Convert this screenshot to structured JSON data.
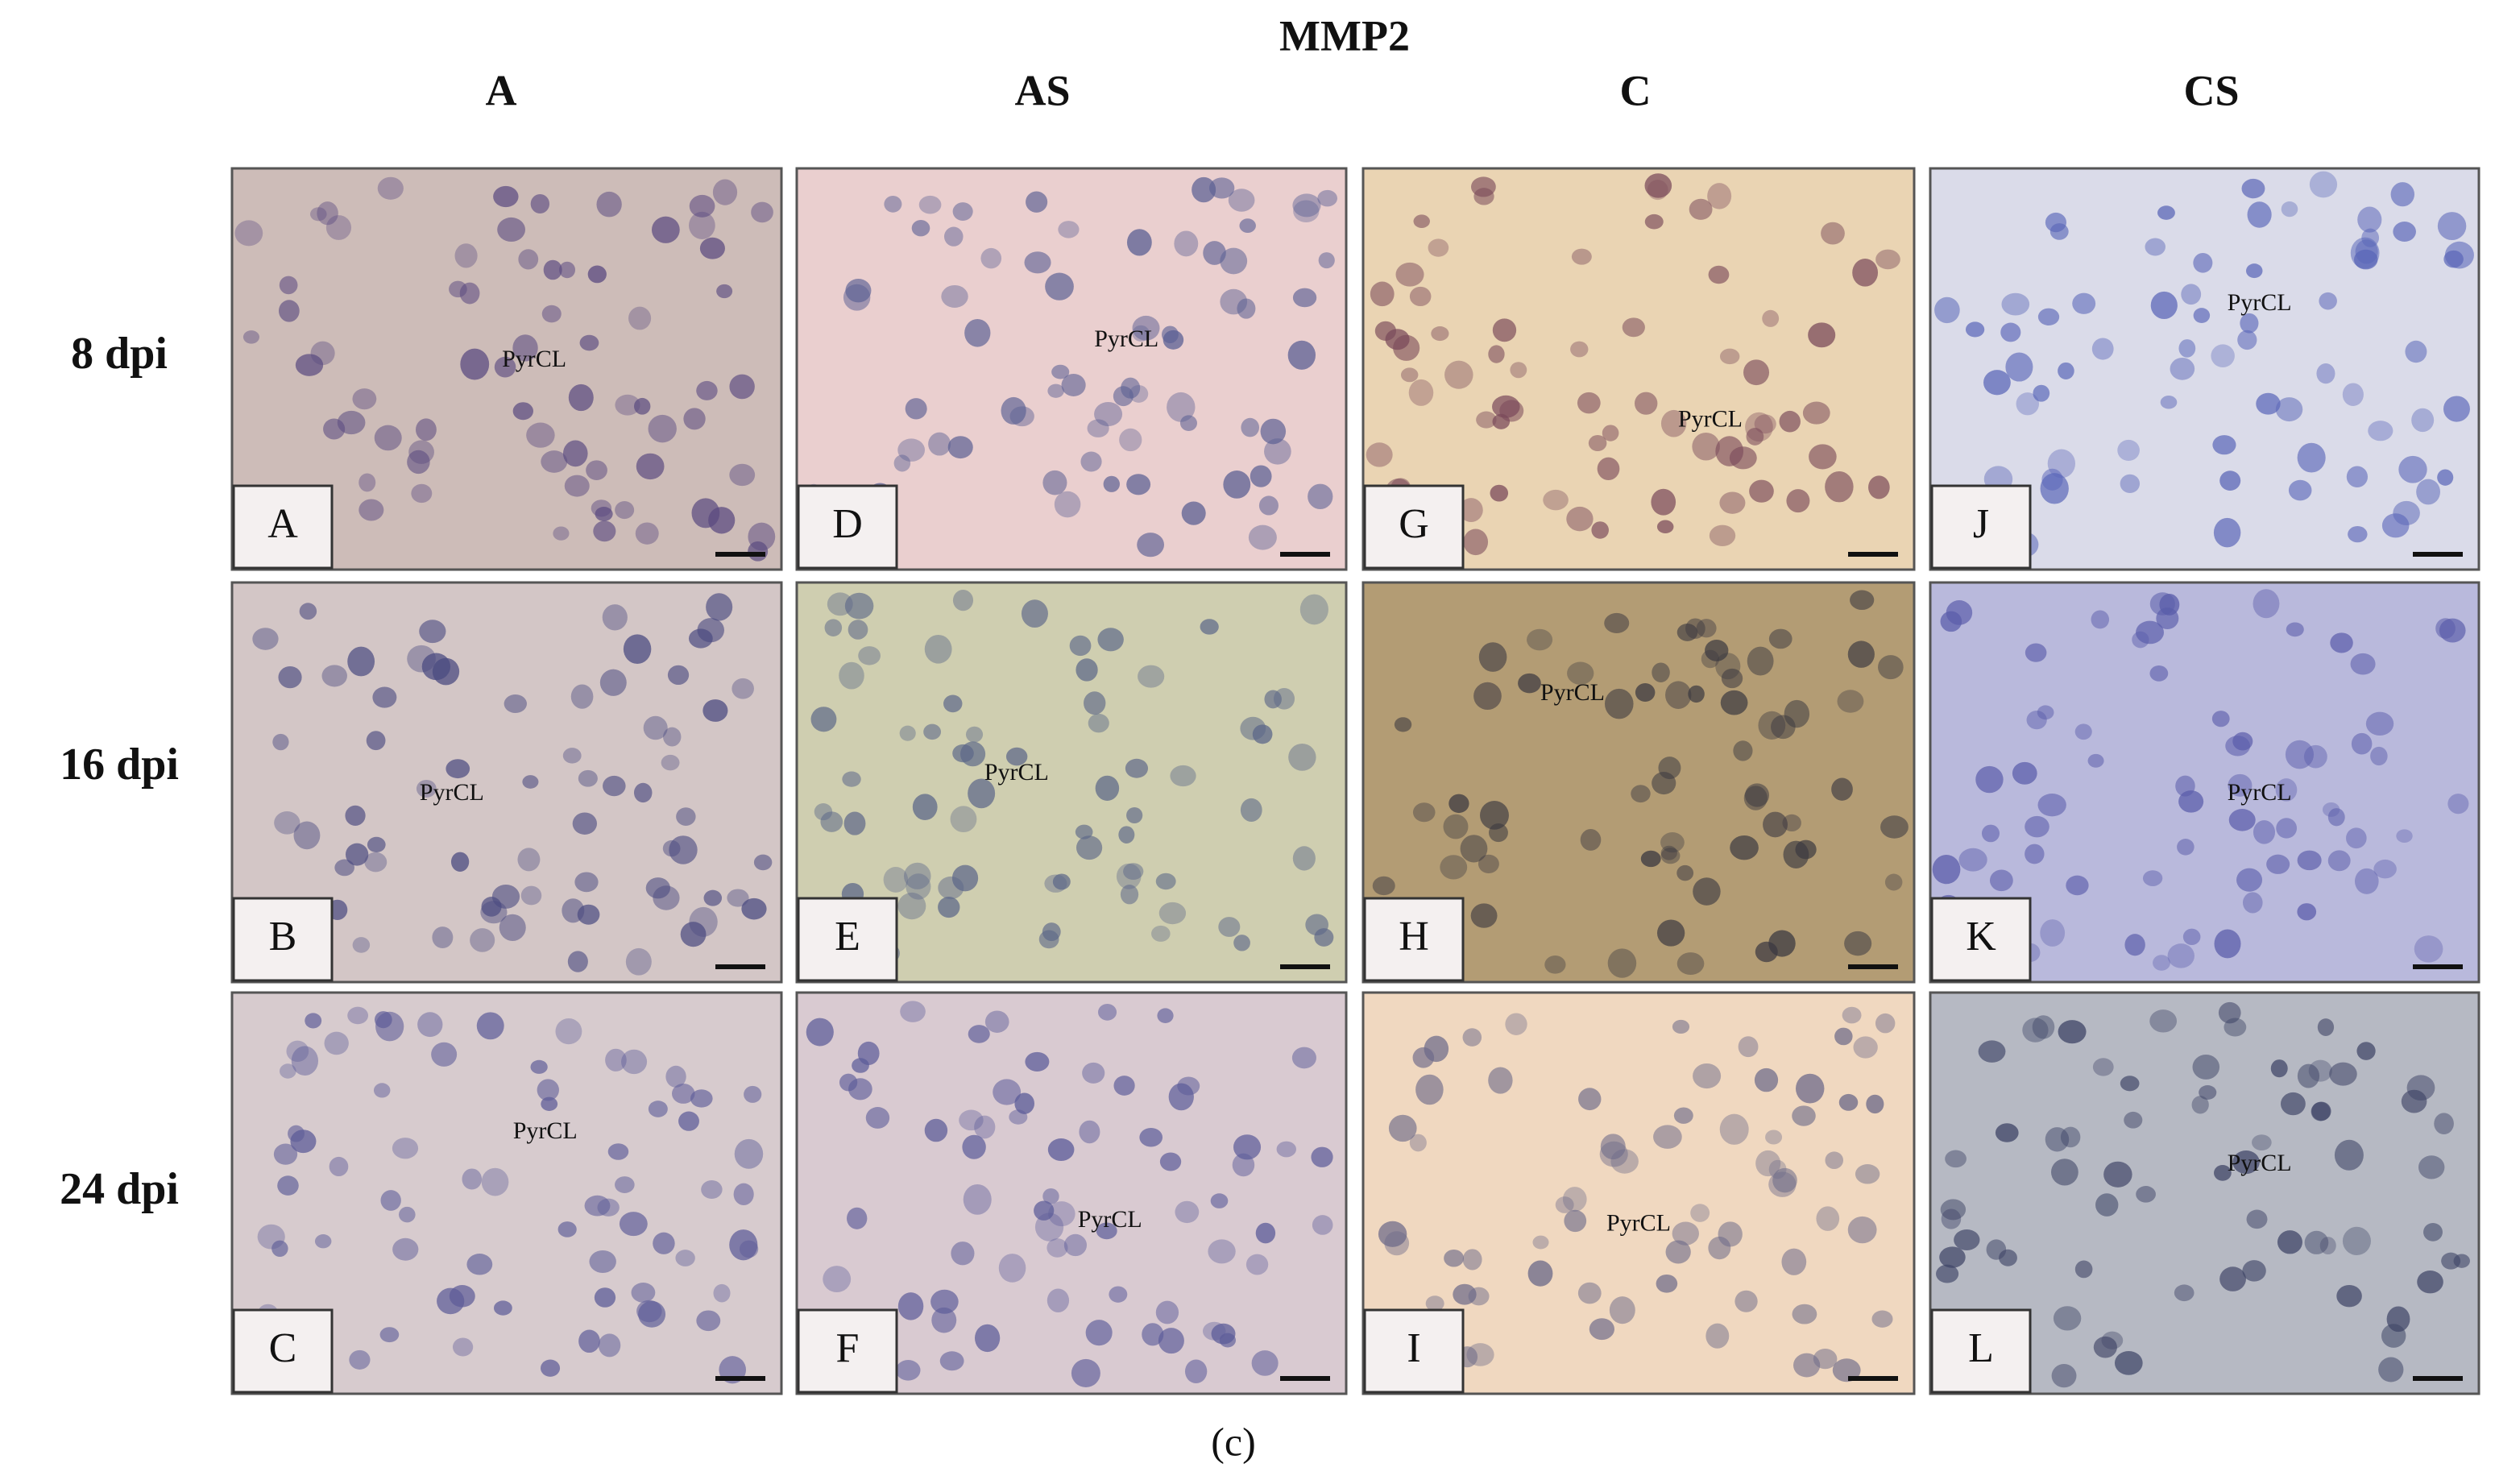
{
  "title": "MMP2",
  "columns": [
    "A",
    "AS",
    "C",
    "CS"
  ],
  "rows": [
    "8 dpi",
    "16 dpi",
    "24 dpi"
  ],
  "panels": [
    [
      {
        "letter": "A",
        "label": "PyrCL"
      },
      {
        "letter": "D",
        "label": "PyrCL"
      },
      {
        "letter": "G",
        "label": "PyrCL"
      },
      {
        "letter": "J",
        "label": "PyrCL"
      }
    ],
    [
      {
        "letter": "B",
        "label": "PyrCL"
      },
      {
        "letter": "E",
        "label": "PyrCL"
      },
      {
        "letter": "H",
        "label": "PyrCL"
      },
      {
        "letter": "K",
        "label": "PyrCL"
      }
    ],
    [
      {
        "letter": "C",
        "label": "PyrCL"
      },
      {
        "letter": "F",
        "label": "PyrCL"
      },
      {
        "letter": "I",
        "label": "PyrCL"
      },
      {
        "letter": "L",
        "label": "PyrCL"
      }
    ]
  ],
  "caption": "(c)"
}
